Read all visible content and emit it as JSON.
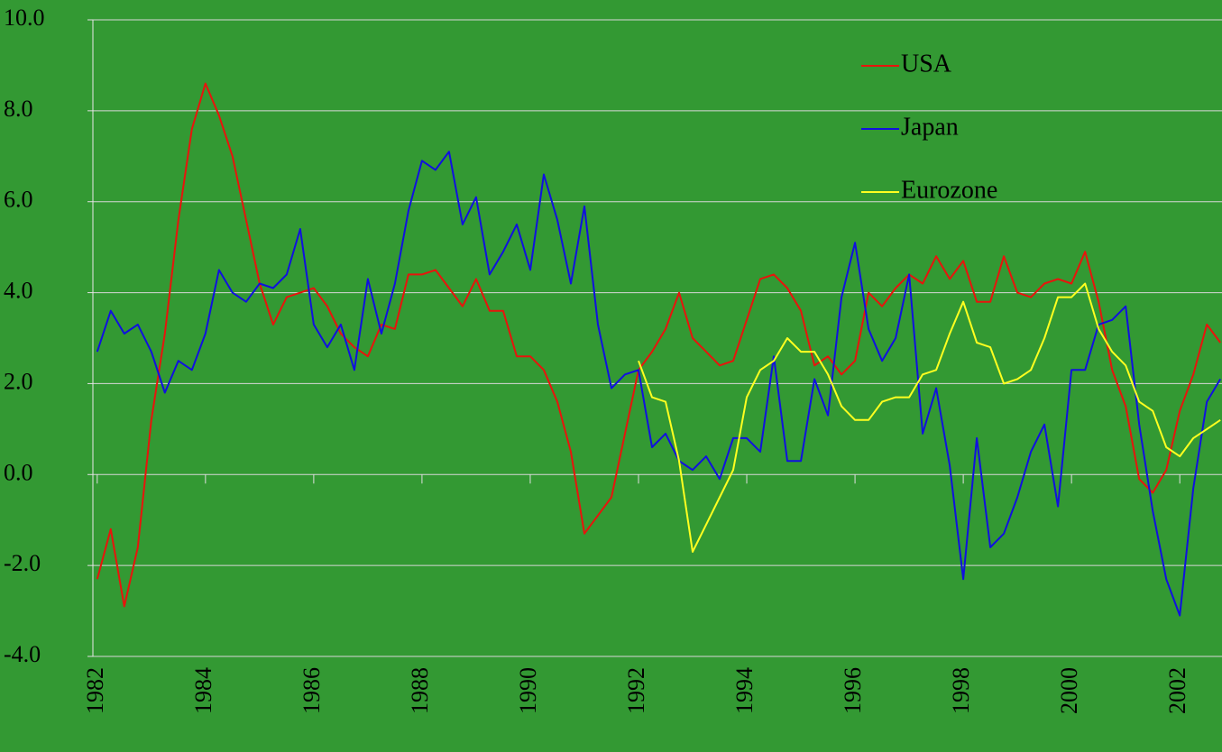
{
  "chart_data": {
    "type": "line",
    "x": [
      1982,
      1982.25,
      1982.5,
      1982.75,
      1983,
      1983.25,
      1983.5,
      1983.75,
      1984,
      1984.25,
      1984.5,
      1984.75,
      1985,
      1985.25,
      1985.5,
      1985.75,
      1986,
      1986.25,
      1986.5,
      1986.75,
      1987,
      1987.25,
      1987.5,
      1987.75,
      1988,
      1988.25,
      1988.5,
      1988.75,
      1989,
      1989.25,
      1989.5,
      1989.75,
      1990,
      1990.25,
      1990.5,
      1990.75,
      1991,
      1991.25,
      1991.5,
      1991.75,
      1992,
      1992.25,
      1992.5,
      1992.75,
      1993,
      1993.25,
      1993.5,
      1993.75,
      1994,
      1994.25,
      1994.5,
      1994.75,
      1995,
      1995.25,
      1995.5,
      1995.75,
      1996,
      1996.25,
      1996.5,
      1996.75,
      1997,
      1997.25,
      1997.5,
      1997.75,
      1998,
      1998.25,
      1998.5,
      1998.75,
      1999,
      1999.25,
      1999.5,
      1999.75,
      2000,
      2000.25,
      2000.5,
      2000.75,
      2001,
      2001.25,
      2001.5,
      2001.75,
      2002,
      2002.25,
      2002.5,
      2002.75
    ],
    "series": [
      {
        "name": "USA",
        "color": "#e8140c",
        "values": [
          -2.3,
          -1.2,
          -2.9,
          -1.6,
          1.2,
          3.1,
          5.6,
          7.6,
          8.6,
          7.9,
          7.0,
          5.6,
          4.2,
          3.3,
          3.9,
          4.0,
          4.1,
          3.7,
          3.1,
          2.8,
          2.6,
          3.3,
          3.2,
          4.4,
          4.4,
          4.5,
          4.1,
          3.7,
          4.3,
          3.6,
          3.6,
          2.6,
          2.6,
          2.3,
          1.6,
          0.5,
          -1.3,
          -0.9,
          -0.5,
          0.9,
          2.3,
          2.7,
          3.2,
          4.0,
          3.0,
          2.7,
          2.4,
          2.5,
          3.4,
          4.3,
          4.4,
          4.1,
          3.6,
          2.4,
          2.6,
          2.2,
          2.5,
          4.0,
          3.7,
          4.1,
          4.4,
          4.2,
          4.8,
          4.3,
          4.7,
          3.8,
          3.8,
          4.8,
          4.0,
          3.9,
          4.2,
          4.3,
          4.2,
          4.9,
          3.8,
          2.3,
          1.5,
          -0.1,
          -0.4,
          0.1,
          1.4,
          2.2,
          3.3,
          2.9
        ]
      },
      {
        "name": "Japan",
        "color": "#1010e0",
        "values": [
          2.7,
          3.6,
          3.1,
          3.3,
          2.7,
          1.8,
          2.5,
          2.3,
          3.1,
          4.5,
          4.0,
          3.8,
          4.2,
          4.1,
          4.4,
          5.4,
          3.3,
          2.8,
          3.3,
          2.3,
          4.3,
          3.1,
          4.2,
          5.8,
          6.9,
          6.7,
          7.1,
          5.5,
          6.1,
          4.4,
          4.9,
          5.5,
          4.5,
          6.6,
          5.6,
          4.2,
          5.9,
          3.3,
          1.9,
          2.2,
          2.3,
          0.6,
          0.9,
          0.3,
          0.1,
          0.4,
          -0.1,
          0.8,
          0.8,
          0.5,
          2.6,
          0.3,
          0.3,
          2.1,
          1.3,
          3.9,
          5.1,
          3.2,
          2.5,
          3.0,
          4.4,
          0.9,
          1.9,
          0.2,
          -2.3,
          0.8,
          -1.6,
          -1.3,
          -0.5,
          0.5,
          1.1,
          -0.7,
          2.3,
          2.3,
          3.3,
          3.4,
          3.7,
          1.1,
          -0.8,
          -2.3,
          -3.1,
          -0.3,
          1.6,
          2.1
        ]
      },
      {
        "name": "Eurozone",
        "color": "#ffff20",
        "values": [
          null,
          null,
          null,
          null,
          null,
          null,
          null,
          null,
          null,
          null,
          null,
          null,
          null,
          null,
          null,
          null,
          null,
          null,
          null,
          null,
          null,
          null,
          null,
          null,
          null,
          null,
          null,
          null,
          null,
          null,
          null,
          null,
          null,
          null,
          null,
          null,
          null,
          null,
          null,
          null,
          2.5,
          1.7,
          1.6,
          0.3,
          -1.7,
          -1.1,
          -0.5,
          0.1,
          1.7,
          2.3,
          2.5,
          3.0,
          2.7,
          2.7,
          2.2,
          1.5,
          1.2,
          1.2,
          1.6,
          1.7,
          1.7,
          2.2,
          2.3,
          3.1,
          3.8,
          2.9,
          2.8,
          2.0,
          2.1,
          2.3,
          3.0,
          3.9,
          3.9,
          4.2,
          3.2,
          2.7,
          2.4,
          1.6,
          1.4,
          0.6,
          0.4,
          0.8,
          1.0,
          1.2
        ]
      }
    ],
    "xlim": [
      1981.92,
      2002.78
    ],
    "xticks": [
      1982,
      1984,
      1986,
      1988,
      1990,
      1992,
      1994,
      1996,
      1998,
      2000,
      2002
    ],
    "ylim": [
      -4,
      10
    ],
    "yticks": [
      {
        "value": -4,
        "label": "-4.0"
      },
      {
        "value": -2,
        "label": "-2.0"
      },
      {
        "value": 0,
        "label": "0.0"
      },
      {
        "value": 2,
        "label": "2.0"
      },
      {
        "value": 4,
        "label": "4.0"
      },
      {
        "value": 6,
        "label": "6.0"
      },
      {
        "value": 8,
        "label": "8.0"
      },
      {
        "value": 10,
        "label": "10.0"
      }
    ],
    "grid": true,
    "legend": "upper right"
  }
}
